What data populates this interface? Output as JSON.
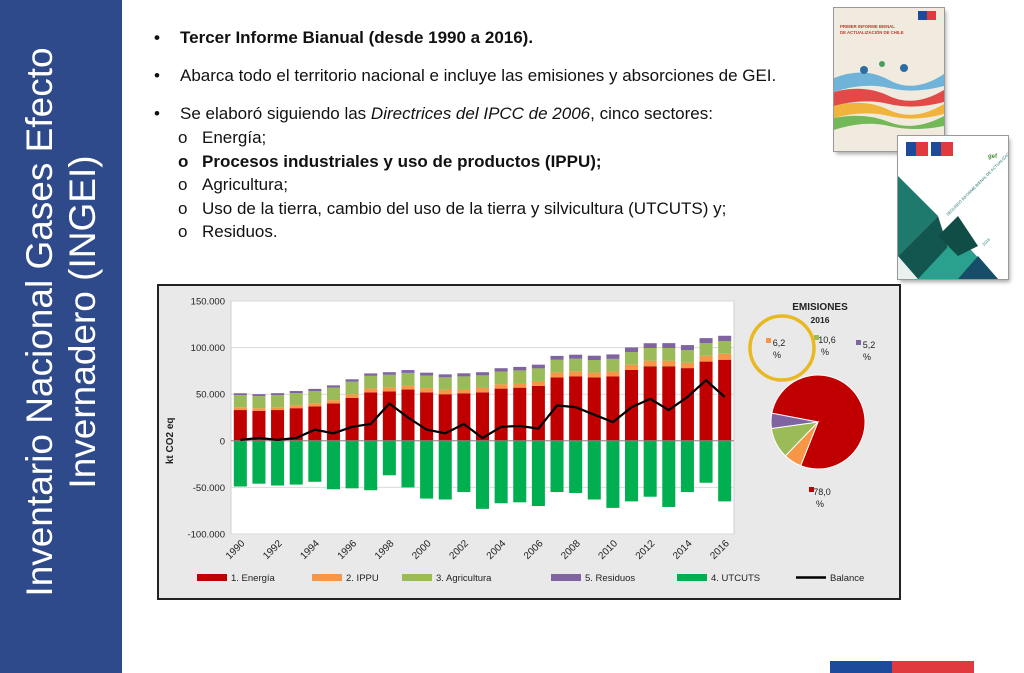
{
  "sidebar": {
    "title": "Inventario Nacional Gases Efecto Invernadero (INGEI)"
  },
  "bullets": {
    "item1": "Tercer Informe Bianual (desde 1990 a 2016).",
    "item2": "Abarca todo el territorio nacional e incluye las emisiones y absorciones de GEI.",
    "item3_prefix": "Se elaboró siguiendo las ",
    "item3_italic": "Directrices del IPCC de 2006",
    "item3_suffix": ", cinco sectores:",
    "sub": [
      "Energía;",
      "Procesos industriales y uso de productos (IPPU);",
      "Agricultura;",
      "Uso de la tierra, cambio del uso de la tierra y silvicultura (UTCUTS) y;",
      "Residuos."
    ]
  },
  "covers": {
    "cover1_title": "PRIMER INFORME BIENAL DE ACTUALIZACIÓN DE CHILE",
    "cover2_title": "SEGUNDO INFORME BIENAL DE ACTUALIZACIÓN DE CHILE",
    "cover2_year": "2016",
    "gef_label": "gef"
  },
  "colors": {
    "sidebar": "#2f4a8a",
    "energia": "#c00000",
    "ippu": "#f79646",
    "agricultura": "#9bbb59",
    "residuos": "#8064a2",
    "utcuts": "#00b050",
    "balance": "#000000",
    "highlight_circle": "#e8b923"
  },
  "chart_data": [
    {
      "type": "bar",
      "stacked": true,
      "ylabel": "kt CO2 eq",
      "ylim": [
        -100000,
        150000
      ],
      "yticks": [
        "150.000",
        "100.000",
        "50.000",
        "0",
        "-50.000",
        "-100.000"
      ],
      "ytick_values": [
        150000,
        100000,
        50000,
        0,
        -50000,
        -100000
      ],
      "categories": [
        "1990",
        "1991",
        "1992",
        "1993",
        "1994",
        "1995",
        "1996",
        "1997",
        "1998",
        "1999",
        "2000",
        "2001",
        "2002",
        "2003",
        "2004",
        "2005",
        "2006",
        "2007",
        "2008",
        "2009",
        "2010",
        "2011",
        "2012",
        "2013",
        "2014",
        "2015",
        "2016"
      ],
      "xtick_labels": [
        "1990",
        "1992",
        "1994",
        "1996",
        "1998",
        "2000",
        "2002",
        "2004",
        "2006",
        "2008",
        "2010",
        "2012",
        "2014",
        "2016"
      ],
      "series": [
        {
          "name": "1. Energía",
          "key": "energia",
          "values": [
            33000,
            32000,
            33000,
            35000,
            37000,
            40000,
            46000,
            52000,
            53000,
            55000,
            52000,
            50000,
            51000,
            52000,
            56000,
            57000,
            59000,
            68000,
            69000,
            68000,
            69000,
            76000,
            80000,
            80000,
            78000,
            85000,
            87000
          ]
        },
        {
          "name": "2. IPPU",
          "key": "ippu",
          "values": [
            3000,
            3000,
            3000,
            3200,
            3400,
            3600,
            4000,
            4200,
            4300,
            4400,
            4500,
            4600,
            4600,
            4700,
            4800,
            5000,
            5200,
            5400,
            5500,
            5200,
            5400,
            5700,
            6000,
            6000,
            5800,
            6200,
            6500
          ]
        },
        {
          "name": "3. Agricultura",
          "key": "agricultura",
          "values": [
            13000,
            13000,
            13000,
            13000,
            13000,
            13500,
            13500,
            13500,
            13500,
            13500,
            13500,
            13500,
            13500,
            13500,
            13500,
            13500,
            13500,
            13500,
            13500,
            13500,
            13500,
            13500,
            13500,
            13500,
            13500,
            13500,
            13500
          ]
        },
        {
          "name": "5. Residuos",
          "key": "residuos",
          "values": [
            2000,
            2000,
            2100,
            2200,
            2300,
            2400,
            2500,
            2600,
            2800,
            3000,
            3100,
            3200,
            3300,
            3400,
            3600,
            3800,
            4000,
            4200,
            4400,
            4600,
            4800,
            5000,
            5200,
            5300,
            5400,
            5500,
            5700
          ]
        },
        {
          "name": "4. UTCUTS",
          "key": "utcuts",
          "values": [
            -49000,
            -46000,
            -48000,
            -47000,
            -44000,
            -52000,
            -51000,
            -53000,
            -37000,
            -50000,
            -62000,
            -63000,
            -55000,
            -73000,
            -67000,
            -66000,
            -70000,
            -55000,
            -56000,
            -63000,
            -72000,
            -65000,
            -60000,
            -71000,
            -55000,
            -45000,
            -65000
          ]
        }
      ],
      "balance": {
        "name": "Balance",
        "key": "balance",
        "values": [
          1000,
          3000,
          1000,
          3000,
          12000,
          8000,
          15000,
          18000,
          40000,
          25000,
          12000,
          8000,
          18000,
          3000,
          15000,
          16000,
          13000,
          38000,
          36000,
          28000,
          20000,
          36000,
          45000,
          33000,
          47000,
          65000,
          47000
        ]
      },
      "legend_position": "bottom"
    },
    {
      "type": "pie",
      "title": "EMISIONES",
      "subtitle": "2016",
      "labels": [
        "Energía",
        "IPPU",
        "Agricultura",
        "Residuos"
      ],
      "values": [
        78.0,
        6.2,
        10.6,
        5.2
      ],
      "value_labels": [
        "78,0 %",
        "6,2 %",
        "10,6 %",
        "5,2 %"
      ],
      "highlighted": "IPPU"
    }
  ]
}
